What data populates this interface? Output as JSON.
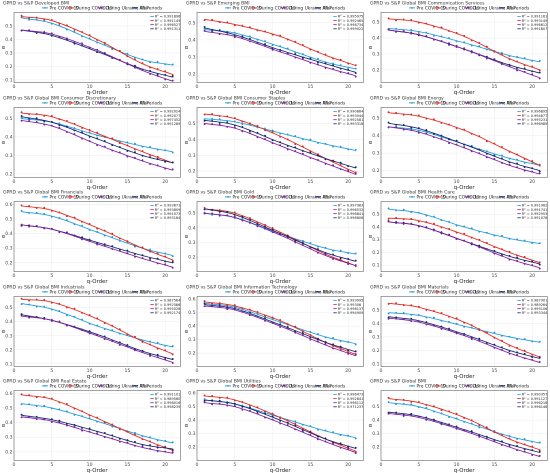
{
  "legend": {
    "items": [
      {
        "label": "Pre COVID-19",
        "color": "#1f9bdc"
      },
      {
        "label": "During COVID-19",
        "color": "#e3261f"
      },
      {
        "label": "During Ukraine War",
        "color": "#7d1fa0"
      },
      {
        "label": "All Periods",
        "color": "#15286e"
      }
    ]
  },
  "axes": {
    "xlabel": "q-Order",
    "ylabel": "α",
    "xlim": [
      0,
      22
    ],
    "xticks": [
      0,
      5,
      10,
      15,
      20
    ]
  },
  "chart_data": [
    {
      "type": "line",
      "title": "GPRD vs S&P Developed BMI",
      "r2": [
        "R² = 0.991896",
        "R² = 0.991149",
        "R² = 0.996527",
        "R² = 0.991311"
      ],
      "ylim": [
        0.08,
        0.6
      ],
      "yticks": [
        0.1,
        0.2,
        0.3,
        0.4,
        0.5
      ],
      "series": [
        {
          "y": [
            0.56,
            0.52,
            0.38,
            0.25,
            0.21
          ]
        },
        {
          "y": [
            0.57,
            0.54,
            0.4,
            0.22,
            0.14
          ]
        },
        {
          "y": [
            0.47,
            0.44,
            0.32,
            0.17,
            0.09
          ]
        },
        {
          "y": [
            0.47,
            0.43,
            0.31,
            0.18,
            0.12
          ]
        }
      ]
    },
    {
      "type": "line",
      "title": "GPRD vs S&P Emerging BMI",
      "r2": [
        "R² = 0.995975",
        "R² = 0.992465",
        "R² = 0.998734",
        "R² = 0.999022"
      ],
      "ylim": [
        0.15,
        0.56
      ],
      "yticks": [
        0.2,
        0.3,
        0.4,
        0.5
      ],
      "series": [
        {
          "y": [
            0.46,
            0.44,
            0.36,
            0.27,
            0.23
          ]
        },
        {
          "y": [
            0.52,
            0.49,
            0.42,
            0.31,
            0.25
          ]
        },
        {
          "y": [
            0.45,
            0.42,
            0.33,
            0.24,
            0.19
          ]
        },
        {
          "y": [
            0.47,
            0.43,
            0.34,
            0.26,
            0.21
          ]
        }
      ]
    },
    {
      "type": "line",
      "title": "GPRD vs S&P Global BMI Communication Services",
      "r2": [
        "R² = 0.991161",
        "R² = 0.993149",
        "R² = 0.996612",
        "R² = 0.991807"
      ],
      "ylim": [
        0.12,
        0.56
      ],
      "yticks": [
        0.2,
        0.3,
        0.4,
        0.5
      ],
      "series": [
        {
          "y": [
            0.46,
            0.44,
            0.37,
            0.29,
            0.25
          ]
        },
        {
          "y": [
            0.52,
            0.5,
            0.41,
            0.27,
            0.2
          ]
        },
        {
          "y": [
            0.45,
            0.42,
            0.33,
            0.22,
            0.15
          ]
        },
        {
          "y": [
            0.45,
            0.42,
            0.33,
            0.23,
            0.18
          ]
        }
      ]
    },
    {
      "type": "line",
      "title": "GPRD vs S&P Global BMI Consumer Discretionary",
      "r2": [
        "R² = 0.992024",
        "R² = 0.992077",
        "R² = 0.997452",
        "R² = 0.991289"
      ],
      "ylim": [
        0.18,
        0.56
      ],
      "yticks": [
        0.2,
        0.3,
        0.4,
        0.5
      ],
      "series": [
        {
          "y": [
            0.5,
            0.48,
            0.41,
            0.35,
            0.32
          ]
        },
        {
          "y": [
            0.53,
            0.51,
            0.42,
            0.32,
            0.26
          ]
        },
        {
          "y": [
            0.49,
            0.46,
            0.36,
            0.27,
            0.22
          ]
        },
        {
          "y": [
            0.51,
            0.48,
            0.39,
            0.3,
            0.26
          ]
        }
      ]
    },
    {
      "type": "line",
      "title": "GPRD vs S&P Global BMI Consumer Staples",
      "r2": [
        "R² = 0.990864",
        "R² = 0.993044",
        "R² = 0.992581",
        "R² = 0.993318"
      ],
      "ylim": [
        0.16,
        0.6
      ],
      "yticks": [
        0.2,
        0.3,
        0.4,
        0.5
      ],
      "series": [
        {
          "y": [
            0.53,
            0.51,
            0.44,
            0.37,
            0.33
          ]
        },
        {
          "y": [
            0.56,
            0.53,
            0.42,
            0.28,
            0.19
          ]
        },
        {
          "y": [
            0.5,
            0.47,
            0.36,
            0.25,
            0.18
          ]
        },
        {
          "y": [
            0.52,
            0.49,
            0.38,
            0.28,
            0.22
          ]
        }
      ]
    },
    {
      "type": "line",
      "title": "GPRD vs S&P Global BMI Energy",
      "r2": [
        "R² = 0.996895",
        "R² = 0.994877",
        "R² = 0.995231",
        "R² = 0.996989"
      ],
      "ylim": [
        0.16,
        0.56
      ],
      "yticks": [
        0.2,
        0.3,
        0.4,
        0.5
      ],
      "series": [
        {
          "y": [
            0.45,
            0.43,
            0.35,
            0.27,
            0.23
          ]
        },
        {
          "y": [
            0.53,
            0.51,
            0.43,
            0.31,
            0.23
          ]
        },
        {
          "y": [
            0.45,
            0.42,
            0.33,
            0.23,
            0.18
          ]
        },
        {
          "y": [
            0.47,
            0.44,
            0.35,
            0.25,
            0.2
          ]
        }
      ]
    },
    {
      "type": "line",
      "title": "GPRD vs S&P Global BMI Financials",
      "r2": [
        "R² = 0.993671",
        "R² = 0.993809",
        "R² = 0.991073",
        "R² = 0.993164"
      ],
      "ylim": [
        0.14,
        0.62
      ],
      "yticks": [
        0.2,
        0.3,
        0.4,
        0.5,
        0.6
      ],
      "series": [
        {
          "y": [
            0.55,
            0.52,
            0.41,
            0.3,
            0.25
          ]
        },
        {
          "y": [
            0.59,
            0.56,
            0.44,
            0.3,
            0.22
          ]
        },
        {
          "y": [
            0.46,
            0.43,
            0.33,
            0.23,
            0.17
          ]
        },
        {
          "y": [
            0.46,
            0.43,
            0.34,
            0.25,
            0.2
          ]
        }
      ]
    },
    {
      "type": "line",
      "title": "GPRD vs S&P Global BMI Gold",
      "r2": [
        "R² = 0.997983",
        "R² = 0.996532",
        "R² = 0.996841",
        "R² = 0.998606"
      ],
      "ylim": [
        0.1,
        0.58
      ],
      "yticks": [
        0.2,
        0.3,
        0.4,
        0.5
      ],
      "series": [
        {
          "y": [
            0.5,
            0.47,
            0.36,
            0.26,
            0.22
          ]
        },
        {
          "y": [
            0.53,
            0.5,
            0.37,
            0.22,
            0.14
          ]
        },
        {
          "y": [
            0.5,
            0.47,
            0.35,
            0.21,
            0.14
          ]
        },
        {
          "y": [
            0.53,
            0.49,
            0.36,
            0.23,
            0.17
          ]
        }
      ]
    },
    {
      "type": "line",
      "title": "GPRD vs S&P Global BMI Health Care",
      "r2": [
        "R² = 0.991962",
        "R² = 0.991741",
        "R² = 0.992953",
        "R² = 0.991076"
      ],
      "ylim": [
        0.05,
        0.6
      ],
      "yticks": [
        0.1,
        0.2,
        0.3,
        0.4,
        0.5
      ],
      "series": [
        {
          "y": [
            0.54,
            0.51,
            0.4,
            0.31,
            0.27
          ]
        },
        {
          "y": [
            0.47,
            0.45,
            0.34,
            0.2,
            0.12
          ]
        },
        {
          "y": [
            0.44,
            0.41,
            0.29,
            0.15,
            0.08
          ]
        },
        {
          "y": [
            0.44,
            0.41,
            0.29,
            0.17,
            0.11
          ]
        }
      ]
    },
    {
      "type": "line",
      "title": "GPRD vs S&P Global BMI Industrials",
      "r2": [
        "R² = 0.987564",
        "R² = 0.992566",
        "R² = 0.995028",
        "R² = 0.992174"
      ],
      "ylim": [
        0.08,
        0.58
      ],
      "yticks": [
        0.1,
        0.2,
        0.3,
        0.4,
        0.5
      ],
      "series": [
        {
          "y": [
            0.53,
            0.49,
            0.37,
            0.27,
            0.22
          ]
        },
        {
          "y": [
            0.56,
            0.54,
            0.42,
            0.26,
            0.17
          ]
        },
        {
          "y": [
            0.44,
            0.41,
            0.3,
            0.18,
            0.11
          ]
        },
        {
          "y": [
            0.45,
            0.41,
            0.31,
            0.19,
            0.13
          ]
        }
      ]
    },
    {
      "type": "line",
      "title": "GPRD vs S&P Global BMI Information Technology",
      "r2": [
        "R² = 0.993995",
        "R² = 0.99306",
        "R² = 0.998137",
        "R² = 0.994909"
      ],
      "ylim": [
        0.1,
        0.62
      ],
      "yticks": [
        0.2,
        0.3,
        0.4,
        0.5,
        0.6
      ],
      "series": [
        {
          "y": [
            0.57,
            0.54,
            0.43,
            0.32,
            0.27
          ]
        },
        {
          "y": [
            0.58,
            0.55,
            0.44,
            0.28,
            0.19
          ]
        },
        {
          "y": [
            0.55,
            0.52,
            0.4,
            0.26,
            0.18
          ]
        },
        {
          "y": [
            0.56,
            0.53,
            0.41,
            0.28,
            0.21
          ]
        }
      ]
    },
    {
      "type": "line",
      "title": "GPRD vs S&P Global BMI Materials",
      "r2": [
        "R² = 0.987901",
        "R² = 0.989264",
        "R² = 0.995106",
        "R² = 0.993344"
      ],
      "ylim": [
        0.08,
        0.6
      ],
      "yticks": [
        0.1,
        0.2,
        0.3,
        0.4,
        0.5
      ],
      "series": [
        {
          "y": [
            0.48,
            0.46,
            0.38,
            0.3,
            0.26
          ]
        },
        {
          "y": [
            0.55,
            0.52,
            0.41,
            0.24,
            0.15
          ]
        },
        {
          "y": [
            0.44,
            0.41,
            0.31,
            0.18,
            0.11
          ]
        },
        {
          "y": [
            0.45,
            0.42,
            0.32,
            0.2,
            0.14
          ]
        }
      ]
    },
    {
      "type": "line",
      "title": "GPRD vs S&P Global BMI Real Estate",
      "r2": [
        "R² = 0.991101",
        "R² = 0.989560",
        "R² = 0.998016",
        "R² = 0.998239"
      ],
      "ylim": [
        0.14,
        0.62
      ],
      "yticks": [
        0.2,
        0.3,
        0.4,
        0.5,
        0.6
      ],
      "series": [
        {
          "y": [
            0.53,
            0.5,
            0.41,
            0.31,
            0.26
          ]
        },
        {
          "y": [
            0.59,
            0.56,
            0.43,
            0.29,
            0.21
          ]
        },
        {
          "y": [
            0.44,
            0.41,
            0.32,
            0.23,
            0.19
          ]
        },
        {
          "y": [
            0.45,
            0.42,
            0.34,
            0.25,
            0.22
          ]
        }
      ]
    },
    {
      "type": "line",
      "title": "GPRD vs S&P Global BMI Utilities",
      "r2": [
        "R² = 0.996473",
        "R² = 0.992841",
        "R² = 0.996112",
        "R² = 0.971237"
      ],
      "ylim": [
        0.1,
        0.62
      ],
      "yticks": [
        0.2,
        0.3,
        0.4,
        0.5,
        0.6
      ],
      "series": [
        {
          "y": [
            0.55,
            0.52,
            0.42,
            0.32,
            0.27
          ]
        },
        {
          "y": [
            0.58,
            0.55,
            0.42,
            0.26,
            0.17
          ]
        },
        {
          "y": [
            0.53,
            0.5,
            0.38,
            0.24,
            0.16
          ]
        },
        {
          "y": [
            0.55,
            0.52,
            0.4,
            0.26,
            0.19
          ]
        }
      ]
    },
    {
      "type": "line",
      "title": "GPRD vs S&P Global BMI",
      "r2": [
        "R² = 0.990357",
        "R² = 0.991127",
        "R² = 0.996218",
        "R² = 0.996146"
      ],
      "ylim": [
        0.1,
        0.62
      ],
      "yticks": [
        0.2,
        0.3,
        0.4,
        0.5
      ],
      "series": [
        {
          "y": [
            0.53,
            0.5,
            0.39,
            0.28,
            0.23
          ]
        },
        {
          "y": [
            0.56,
            0.53,
            0.42,
            0.26,
            0.18
          ]
        },
        {
          "y": [
            0.45,
            0.42,
            0.32,
            0.2,
            0.13
          ]
        },
        {
          "y": [
            0.46,
            0.43,
            0.33,
            0.22,
            0.16
          ]
        }
      ]
    }
  ]
}
